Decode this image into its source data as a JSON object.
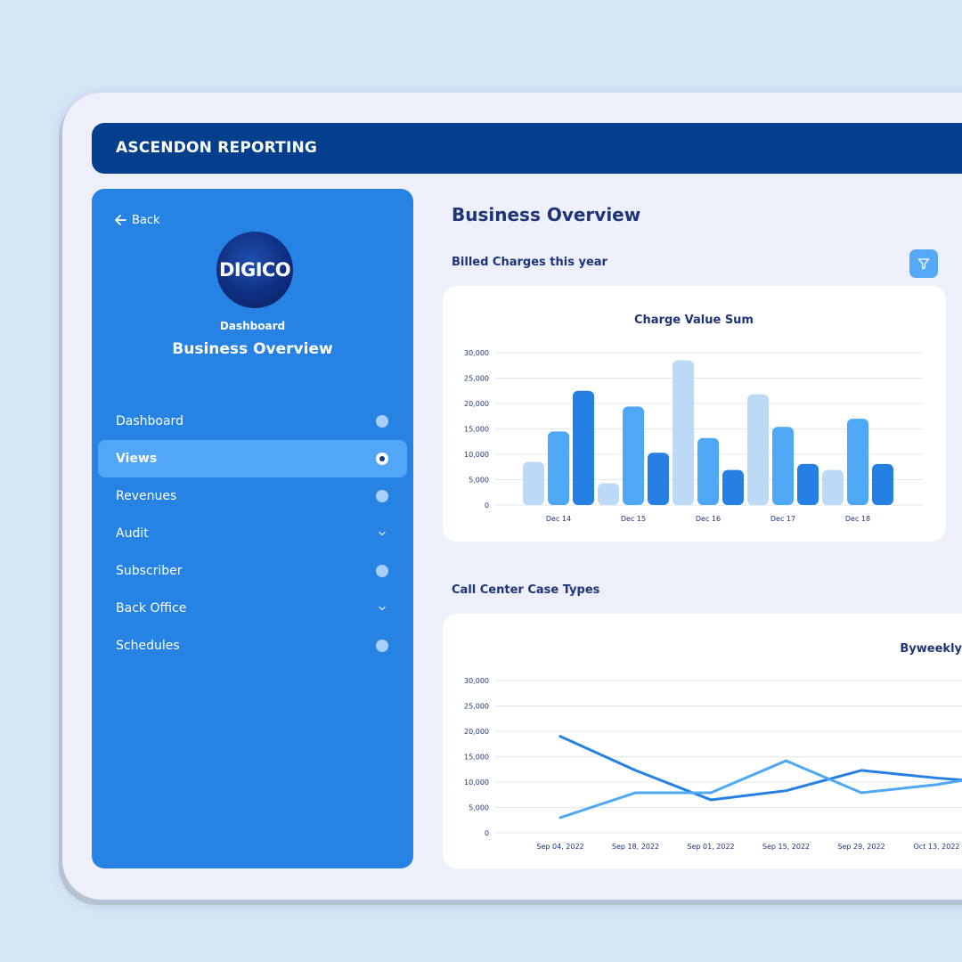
{
  "app": {
    "title": "ASCENDON REPORTING"
  },
  "sidebar": {
    "back_label": "Back",
    "logo_text": "DIGICO",
    "subtitle": "Dashboard",
    "title": "Business Overview",
    "items": [
      {
        "label": "Dashboard",
        "indicator": "dot"
      },
      {
        "label": "Views",
        "indicator": "radio",
        "active": true
      },
      {
        "label": "Revenues",
        "indicator": "dot"
      },
      {
        "label": "Audit",
        "indicator": "chevron"
      },
      {
        "label": "Subscriber",
        "indicator": "dot"
      },
      {
        "label": "Back Office",
        "indicator": "chevron"
      },
      {
        "label": "Schedules",
        "indicator": "dot"
      }
    ]
  },
  "main": {
    "page_title": "Business Overview",
    "section1_title": "Billed Charges this year",
    "section2_title": "Call Center Case Types",
    "filter_icon": "filter-icon"
  },
  "colors": {
    "series_light": "#bcdaf5",
    "series_mid": "#4fa8f5",
    "series_dark": "#2680e3"
  },
  "chart_data": [
    {
      "type": "bar",
      "title": "Charge Value Sum",
      "categories": [
        "Dec 14",
        "Dec 15",
        "Dec 16",
        "Dec 17",
        "Dec 18"
      ],
      "series": [
        {
          "values": [
            8500,
            4300,
            28500,
            21800,
            6900
          ]
        },
        {
          "values": [
            14500,
            19400,
            13200,
            15400,
            17000
          ]
        },
        {
          "values": [
            22500,
            10300,
            6900,
            8100,
            8100
          ]
        }
      ],
      "ylim": [
        0,
        30000
      ],
      "yticks": [
        "0",
        "5,000",
        "10,000",
        "15,000",
        "20,000",
        "25,000",
        "30,000"
      ],
      "grid": true
    },
    {
      "type": "line",
      "title": "Byweekly",
      "x": [
        "Sep 04, 2022",
        "Sep 18, 2022",
        "Sep 01, 2022",
        "Sep 15, 2022",
        "Sep 29, 2022",
        "Oct 13, 2022"
      ],
      "series": [
        {
          "values": [
            19000,
            12300,
            6500,
            8300,
            12300,
            10800
          ]
        },
        {
          "values": [
            3000,
            7900,
            7900,
            14200,
            7900,
            9500
          ]
        }
      ],
      "ylim": [
        0,
        30000
      ],
      "yticks": [
        "0",
        "5,000",
        "10,000",
        "15,000",
        "20,000",
        "25,000",
        "30,000"
      ],
      "grid": true
    }
  ]
}
